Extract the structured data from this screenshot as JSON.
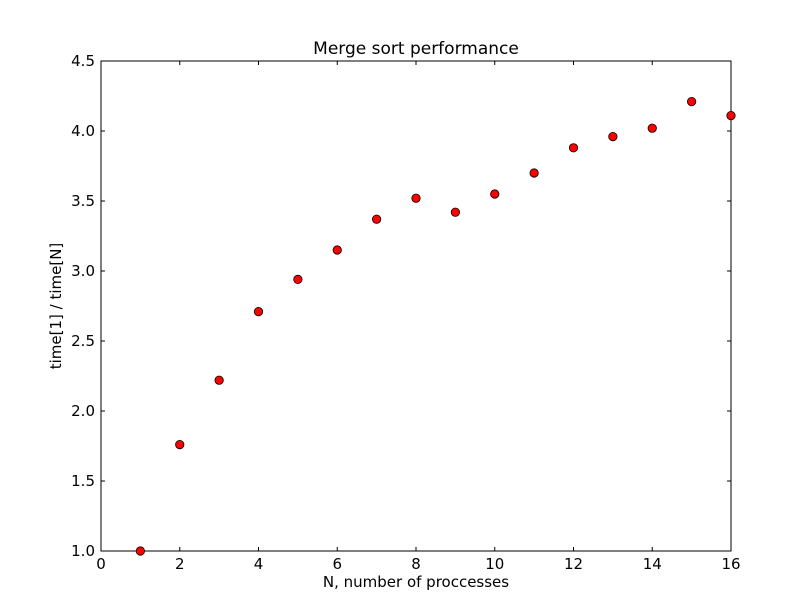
{
  "chart_data": {
    "type": "scatter",
    "title": "Merge sort performance",
    "xlabel": "N, number of proccesses",
    "ylabel": "time[1] / time[N]",
    "xlim": [
      0,
      16
    ],
    "ylim": [
      1.0,
      4.5
    ],
    "xticks": [
      "0",
      "2",
      "4",
      "6",
      "8",
      "10",
      "12",
      "14",
      "16"
    ],
    "yticks": [
      "1.0",
      "1.5",
      "2.0",
      "2.5",
      "3.0",
      "3.5",
      "4.0",
      "4.5"
    ],
    "grid": false,
    "marker_color": "#ff0000",
    "marker_edge_color": "#000000",
    "points": [
      {
        "x": 1,
        "y": 1.0
      },
      {
        "x": 2,
        "y": 1.76
      },
      {
        "x": 3,
        "y": 2.22
      },
      {
        "x": 4,
        "y": 2.71
      },
      {
        "x": 5,
        "y": 2.94
      },
      {
        "x": 6,
        "y": 3.15
      },
      {
        "x": 7,
        "y": 3.37
      },
      {
        "x": 8,
        "y": 3.52
      },
      {
        "x": 9,
        "y": 3.42
      },
      {
        "x": 10,
        "y": 3.55
      },
      {
        "x": 11,
        "y": 3.7
      },
      {
        "x": 12,
        "y": 3.88
      },
      {
        "x": 13,
        "y": 3.96
      },
      {
        "x": 14,
        "y": 4.02
      },
      {
        "x": 15,
        "y": 4.21
      },
      {
        "x": 16,
        "y": 4.11
      }
    ]
  }
}
